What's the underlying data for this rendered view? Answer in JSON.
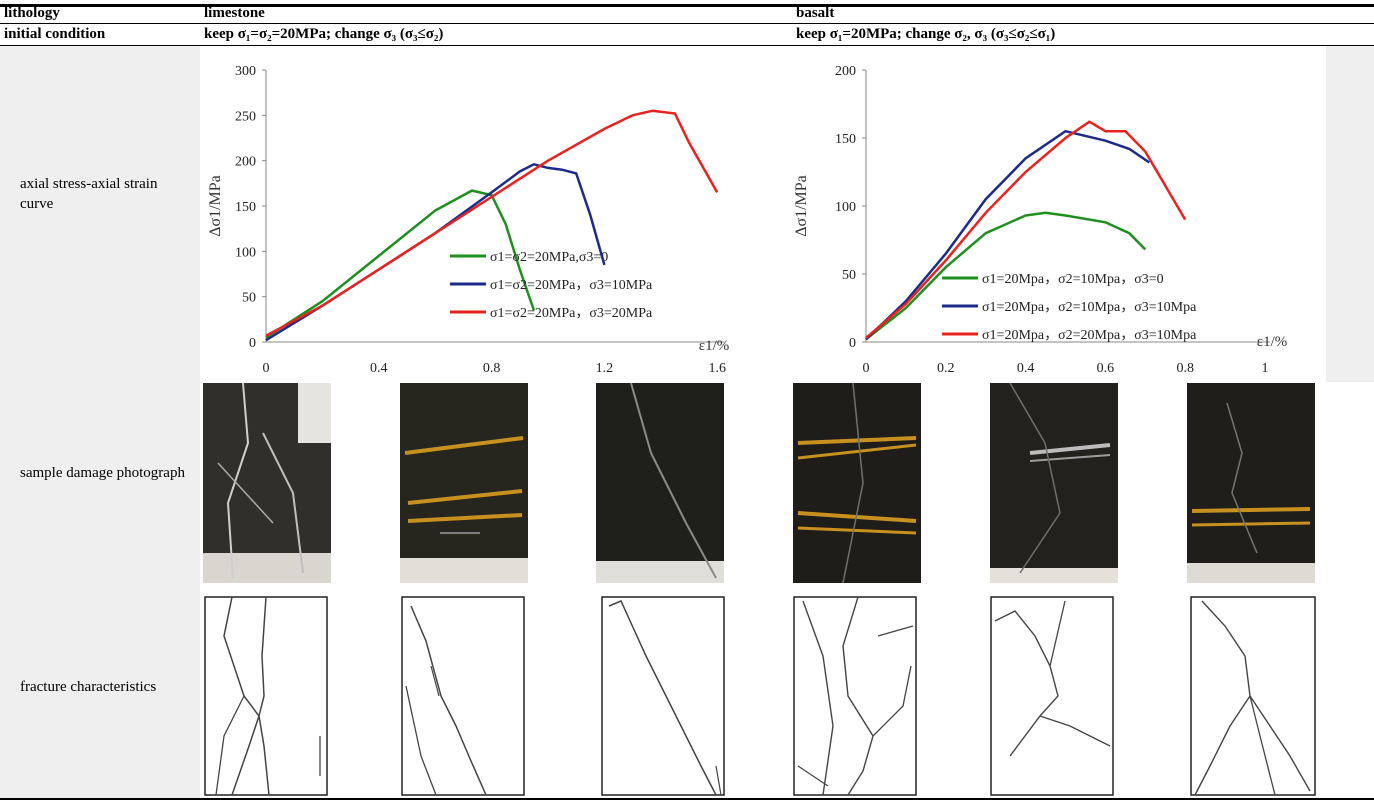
{
  "header": {
    "lithology_label": "lithology",
    "limestone": "limestone",
    "basalt": "basalt",
    "initial_condition_label": "initial condition",
    "limestone_condition": "keep σ₁=σ₂=20MPa; change σ₃ (σ₃≤σ₂)",
    "basalt_condition": "keep σ₁=20MPa; change σ₂, σ₃ (σ₃≤σ₂≤σ₁)"
  },
  "rows": {
    "curve_label": "axial stress-axial strain curve",
    "photo_label": "sample damage photograph",
    "fracture_label": "fracture characteristics"
  },
  "chart_data": [
    {
      "type": "line",
      "title": "",
      "xlabel": "ε1/%",
      "ylabel": "Δσ1/MPa",
      "xlim": [
        0,
        1.6
      ],
      "ylim": [
        0,
        300
      ],
      "xticks": [
        "0",
        "0.4",
        "0.8",
        "1.2",
        "1.6"
      ],
      "yticks": [
        "0",
        "50",
        "100",
        "150",
        "200",
        "250",
        "300"
      ],
      "legend_position": "center-right",
      "series": [
        {
          "name": "σ1=σ2=20MPa,σ3=0",
          "color": "#1f8f1f",
          "points": [
            [
              0,
              5
            ],
            [
              0.2,
              45
            ],
            [
              0.4,
              95
            ],
            [
              0.6,
              145
            ],
            [
              0.73,
              167
            ],
            [
              0.8,
              162
            ],
            [
              0.85,
              130
            ],
            [
              0.9,
              80
            ],
            [
              0.95,
              35
            ]
          ]
        },
        {
          "name": "σ1=σ2=20MPa，σ3=10MPa",
          "color": "#1c2a8c",
          "points": [
            [
              0,
              2
            ],
            [
              0.2,
              40
            ],
            [
              0.4,
              80
            ],
            [
              0.6,
              120
            ],
            [
              0.8,
              165
            ],
            [
              0.9,
              188
            ],
            [
              0.95,
              196
            ],
            [
              1.0,
              192
            ],
            [
              1.05,
              190
            ],
            [
              1.1,
              186
            ],
            [
              1.15,
              140
            ],
            [
              1.2,
              85
            ]
          ]
        },
        {
          "name": "σ1=σ2=20MPa，σ3=20MPa",
          "color": "#e8231e",
          "points": [
            [
              0,
              7
            ],
            [
              0.2,
              40
            ],
            [
              0.4,
              80
            ],
            [
              0.6,
              120
            ],
            [
              0.8,
              160
            ],
            [
              1.0,
              200
            ],
            [
              1.2,
              235
            ],
            [
              1.3,
              250
            ],
            [
              1.37,
              255
            ],
            [
              1.45,
              252
            ],
            [
              1.5,
              220
            ],
            [
              1.6,
              165
            ]
          ]
        }
      ]
    },
    {
      "type": "line",
      "title": "",
      "xlabel": "ε1/%",
      "ylabel": "Δσ1/MPa",
      "xlim": [
        0,
        1.0
      ],
      "ylim": [
        0,
        200
      ],
      "xticks": [
        "0",
        "0.2",
        "0.4",
        "0.6",
        "0.8",
        "1"
      ],
      "yticks": [
        "0",
        "50",
        "100",
        "150",
        "200"
      ],
      "legend_position": "bottom-right",
      "series": [
        {
          "name": "σ1=20Mpa，σ2=10Mpa，σ3=0",
          "color": "#1f8f1f",
          "points": [
            [
              0,
              2
            ],
            [
              0.1,
              25
            ],
            [
              0.2,
              55
            ],
            [
              0.3,
              80
            ],
            [
              0.4,
              93
            ],
            [
              0.45,
              95
            ],
            [
              0.5,
              93
            ],
            [
              0.6,
              88
            ],
            [
              0.66,
              80
            ],
            [
              0.7,
              68
            ]
          ]
        },
        {
          "name": "σ1=20Mpa，σ2=10Mpa，σ3=10Mpa",
          "color": "#1c2a8c",
          "points": [
            [
              0,
              2
            ],
            [
              0.1,
              30
            ],
            [
              0.2,
              65
            ],
            [
              0.3,
              105
            ],
            [
              0.4,
              135
            ],
            [
              0.5,
              155
            ],
            [
              0.6,
              148
            ],
            [
              0.66,
              142
            ],
            [
              0.71,
              132
            ]
          ]
        },
        {
          "name": "σ1=20Mpa，σ2=20Mpa，σ3=10Mpa",
          "color": "#e8231e",
          "points": [
            [
              0,
              3
            ],
            [
              0.1,
              28
            ],
            [
              0.2,
              60
            ],
            [
              0.3,
              95
            ],
            [
              0.4,
              125
            ],
            [
              0.5,
              150
            ],
            [
              0.56,
              162
            ],
            [
              0.6,
              155
            ],
            [
              0.65,
              155
            ],
            [
              0.7,
              140
            ],
            [
              0.8,
              90
            ]
          ]
        }
      ]
    }
  ]
}
